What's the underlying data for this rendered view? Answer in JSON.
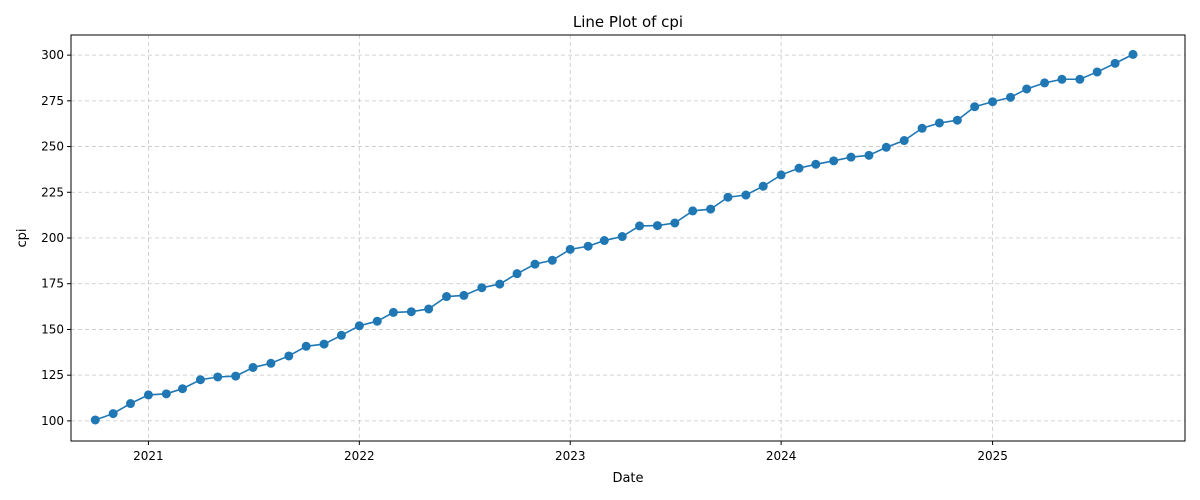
{
  "chart_data": {
    "type": "line",
    "title": "Line Plot of cpi",
    "xlabel": "Date",
    "ylabel": "cpi",
    "x_ticks": [
      "2021",
      "2022",
      "2023",
      "2024",
      "2025"
    ],
    "x_tick_dates": [
      "2021-01-01",
      "2022-01-01",
      "2023-01-01",
      "2024-01-01",
      "2025-01-01"
    ],
    "y_ticks": [
      100,
      125,
      150,
      175,
      200,
      225,
      250,
      275,
      300
    ],
    "xlim": [
      "2020-08-20",
      "2025-11-30"
    ],
    "ylim": [
      89,
      311
    ],
    "grid": true,
    "color": "#1f77b4",
    "x": [
      "2020-10-01",
      "2020-11-01",
      "2020-12-01",
      "2021-01-01",
      "2021-02-01",
      "2021-03-01",
      "2021-04-01",
      "2021-05-01",
      "2021-06-01",
      "2021-07-01",
      "2021-08-01",
      "2021-09-01",
      "2021-10-01",
      "2021-11-01",
      "2021-12-01",
      "2022-01-01",
      "2022-02-01",
      "2022-03-01",
      "2022-04-01",
      "2022-05-01",
      "2022-06-01",
      "2022-07-01",
      "2022-08-01",
      "2022-09-01",
      "2022-10-01",
      "2022-11-01",
      "2022-12-01",
      "2023-01-01",
      "2023-02-01",
      "2023-03-01",
      "2023-04-01",
      "2023-05-01",
      "2023-06-01",
      "2023-07-01",
      "2023-08-01",
      "2023-09-01",
      "2023-10-01",
      "2023-11-01",
      "2023-12-01",
      "2024-01-01",
      "2024-02-01",
      "2024-03-01",
      "2024-04-01",
      "2024-05-01",
      "2024-06-01",
      "2024-07-01",
      "2024-08-01",
      "2024-09-01",
      "2024-10-01",
      "2024-11-01",
      "2024-12-01",
      "2025-01-01",
      "2025-02-01",
      "2025-03-01",
      "2025-04-01",
      "2025-05-01",
      "2025-06-01",
      "2025-07-01",
      "2025-08-01",
      "2025-09-01"
    ],
    "series": [
      {
        "values": [
          100.5,
          104.0,
          109.5,
          114.2,
          114.8,
          117.6,
          122.5,
          124.0,
          124.5,
          129.2,
          131.5,
          135.5,
          140.8,
          142.0,
          146.8,
          152.0,
          154.5,
          159.3,
          159.7,
          161.2,
          168.0,
          168.6,
          172.8,
          174.8,
          180.5,
          185.7,
          187.8,
          193.8,
          195.5,
          198.6,
          200.8,
          206.6,
          206.8,
          208.2,
          214.8,
          215.8,
          222.3,
          223.5,
          228.3,
          234.5,
          238.2,
          240.3,
          242.2,
          244.2,
          245.2,
          249.6,
          253.3,
          260.0,
          262.9,
          264.4,
          271.8,
          274.5,
          276.9,
          281.5,
          284.8,
          286.8,
          286.8,
          290.8,
          295.5,
          300.4
        ]
      }
    ]
  }
}
